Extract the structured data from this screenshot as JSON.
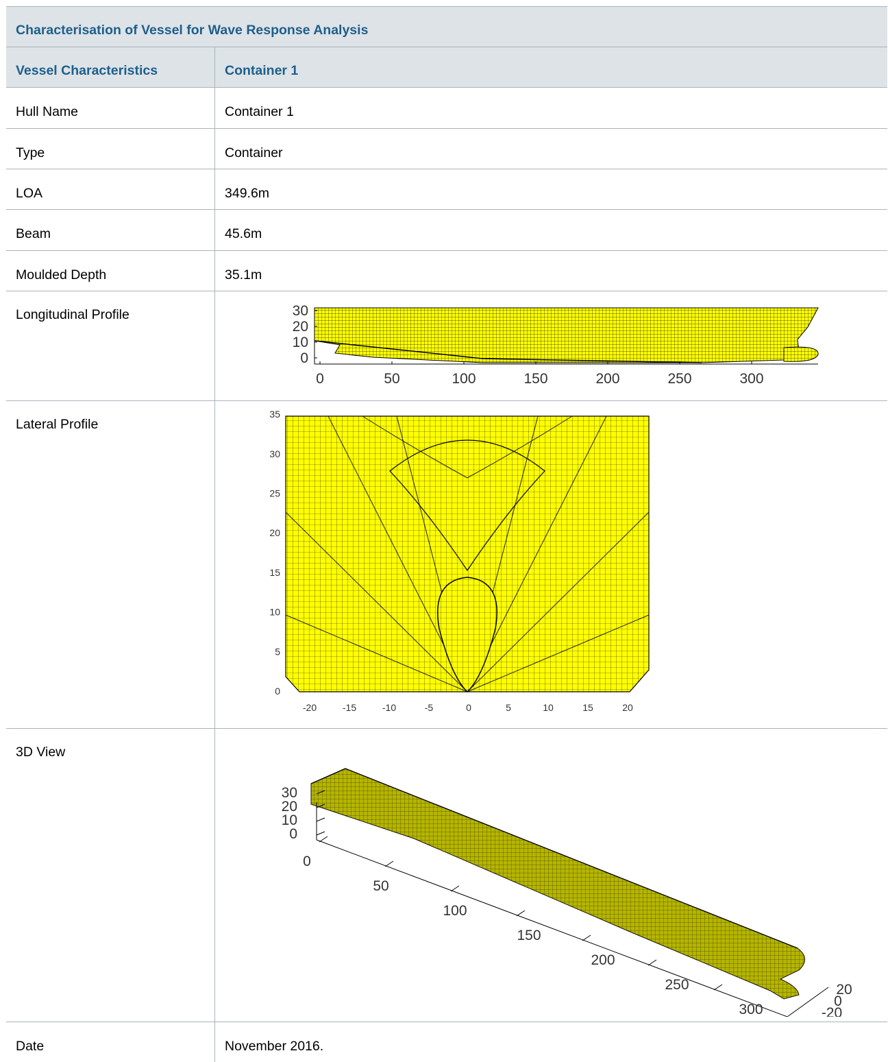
{
  "title": "Characterisation of Vessel for Wave Response Analysis",
  "header": {
    "col1": "Vessel Characteristics",
    "col2": "Container 1"
  },
  "rows": [
    {
      "label": "Hull Name",
      "value": "Container 1"
    },
    {
      "label": "Type",
      "value": "Container"
    },
    {
      "label": "LOA",
      "value": "349.6m"
    },
    {
      "label": "Beam",
      "value": "45.6m"
    },
    {
      "label": "Moulded Depth",
      "value": "35.1m"
    }
  ],
  "figures": {
    "longitudinal": {
      "label": "Longitudinal Profile",
      "x_ticks": [
        "0",
        "50",
        "100",
        "150",
        "200",
        "250",
        "300"
      ],
      "y_ticks": [
        "0",
        "10",
        "20",
        "30"
      ]
    },
    "lateral": {
      "label": "Lateral Profile",
      "x_ticks": [
        "-20",
        "-15",
        "-10",
        "-5",
        "0",
        "5",
        "10",
        "15",
        "20"
      ],
      "y_ticks": [
        "0",
        "5",
        "10",
        "15",
        "20",
        "25",
        "30",
        "35"
      ]
    },
    "view3d": {
      "label": "3D View",
      "x_ticks": [
        "0",
        "50",
        "100",
        "150",
        "200",
        "250",
        "300"
      ],
      "z_ticks": [
        "0",
        "10",
        "20",
        "30"
      ],
      "y_ticks": [
        "20",
        "0",
        "-20"
      ]
    }
  },
  "date": {
    "label": "Date",
    "value": "November 2016."
  },
  "colors": {
    "mesh_fill": "#ffff00",
    "mesh_3d_fill": "#b5b500",
    "header_text": "#1f5f8b",
    "header_bg": "#dde3e7"
  }
}
